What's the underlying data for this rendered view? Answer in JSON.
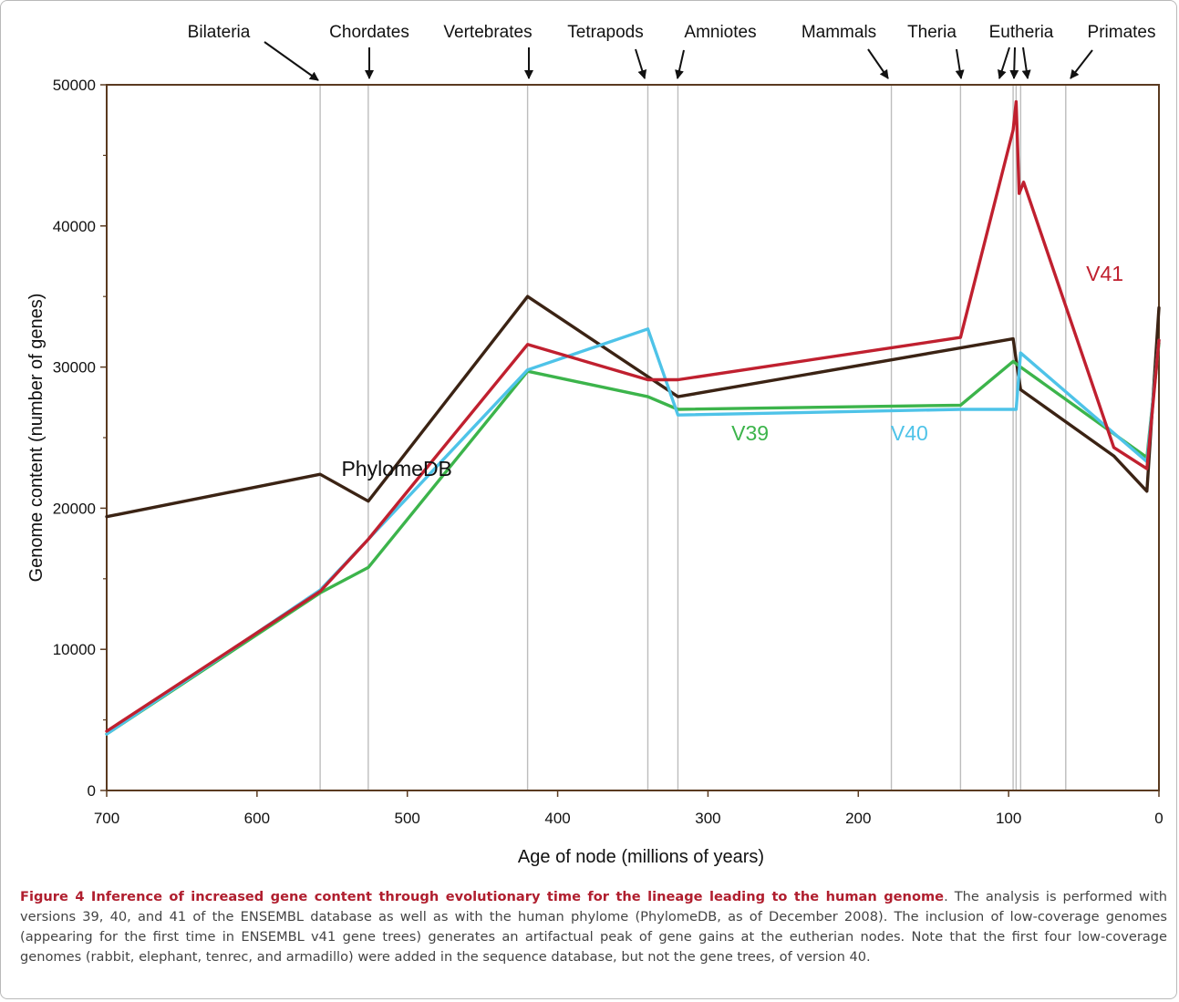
{
  "chart_data": {
    "type": "line",
    "xlabel": "Age of node (millions of years)",
    "ylabel": "Genome content (number of genes)",
    "xlim": [
      700,
      0
    ],
    "ylim": [
      0,
      50000
    ],
    "x_reversed": true,
    "x_ticks": [
      700,
      600,
      500,
      400,
      300,
      200,
      100,
      0
    ],
    "y_ticks": [
      0,
      10000,
      20000,
      30000,
      40000,
      50000
    ],
    "grid": false,
    "clades": [
      {
        "name": "Bilateria",
        "age": 558
      },
      {
        "name": "Chordates",
        "age": 526
      },
      {
        "name": "Vertebrates",
        "age": 420
      },
      {
        "name": "Tetrapods",
        "age": 340
      },
      {
        "name": "Amniotes",
        "age": 320
      },
      {
        "name": "Mammals",
        "age": 178
      },
      {
        "name": "Theria",
        "age": 132
      },
      {
        "name": "Eutheria",
        "age": 97
      },
      {
        "name": "Eutheria",
        "age": 95
      },
      {
        "name": "Eutheria",
        "age": 92
      },
      {
        "name": "Primates",
        "age": 62
      }
    ],
    "series": [
      {
        "name": "PhylomeDB",
        "color": "#3b2314",
        "x": [
          700,
          558,
          526,
          420,
          320,
          97,
          95,
          92,
          30,
          8,
          0
        ],
        "y": [
          19400,
          22400,
          20500,
          35000,
          27900,
          32000,
          30500,
          28400,
          23700,
          21200,
          34200
        ]
      },
      {
        "name": "V39",
        "color": "#3cb44b",
        "x": [
          700,
          558,
          526,
          420,
          340,
          320,
          132,
          97,
          92,
          8,
          0
        ],
        "y": [
          4000,
          14000,
          15800,
          29700,
          27900,
          27000,
          27300,
          30400,
          30000,
          23600,
          31700
        ]
      },
      {
        "name": "V40",
        "color": "#4ec3e8",
        "x": [
          700,
          558,
          526,
          420,
          340,
          320,
          132,
          95,
          92,
          8,
          0
        ],
        "y": [
          4000,
          14200,
          17800,
          29800,
          32700,
          26600,
          27000,
          27000,
          31000,
          23300,
          31900
        ]
      },
      {
        "name": "V41",
        "color": "#c0202f",
        "x": [
          700,
          558,
          526,
          420,
          340,
          320,
          132,
          97,
          95,
          93,
          90,
          30,
          8,
          0
        ],
        "y": [
          4200,
          14100,
          17800,
          31600,
          29100,
          29100,
          32100,
          46800,
          48800,
          42300,
          43100,
          24300,
          22800,
          31900
        ]
      }
    ],
    "series_labels": [
      {
        "name": "PhylomeDB",
        "x": 507,
        "y": 22300
      },
      {
        "name": "V39",
        "x": 272,
        "y": 24800
      },
      {
        "name": "V40",
        "x": 166,
        "y": 24800
      },
      {
        "name": "V41",
        "x": 36,
        "y": 36100
      }
    ]
  },
  "caption": {
    "label": "Figure 4 Inference of increased gene content through evolutionary time for the lineage leading to the human genome",
    "text": ". The analysis is performed with versions 39, 40, and 41 of the ENSEMBL database as well as with the human phylome (PhylomeDB, as of December 2008). The inclusion of low-coverage genomes (appearing for the first time in ENSEMBL v41 gene trees) generates an artifactual peak of gene gains at the eutherian nodes. Note that the first four low-coverage genomes (rabbit, elephant, tenrec, and armadillo) were added in the sequence database, but not the gene trees, of version 40."
  }
}
